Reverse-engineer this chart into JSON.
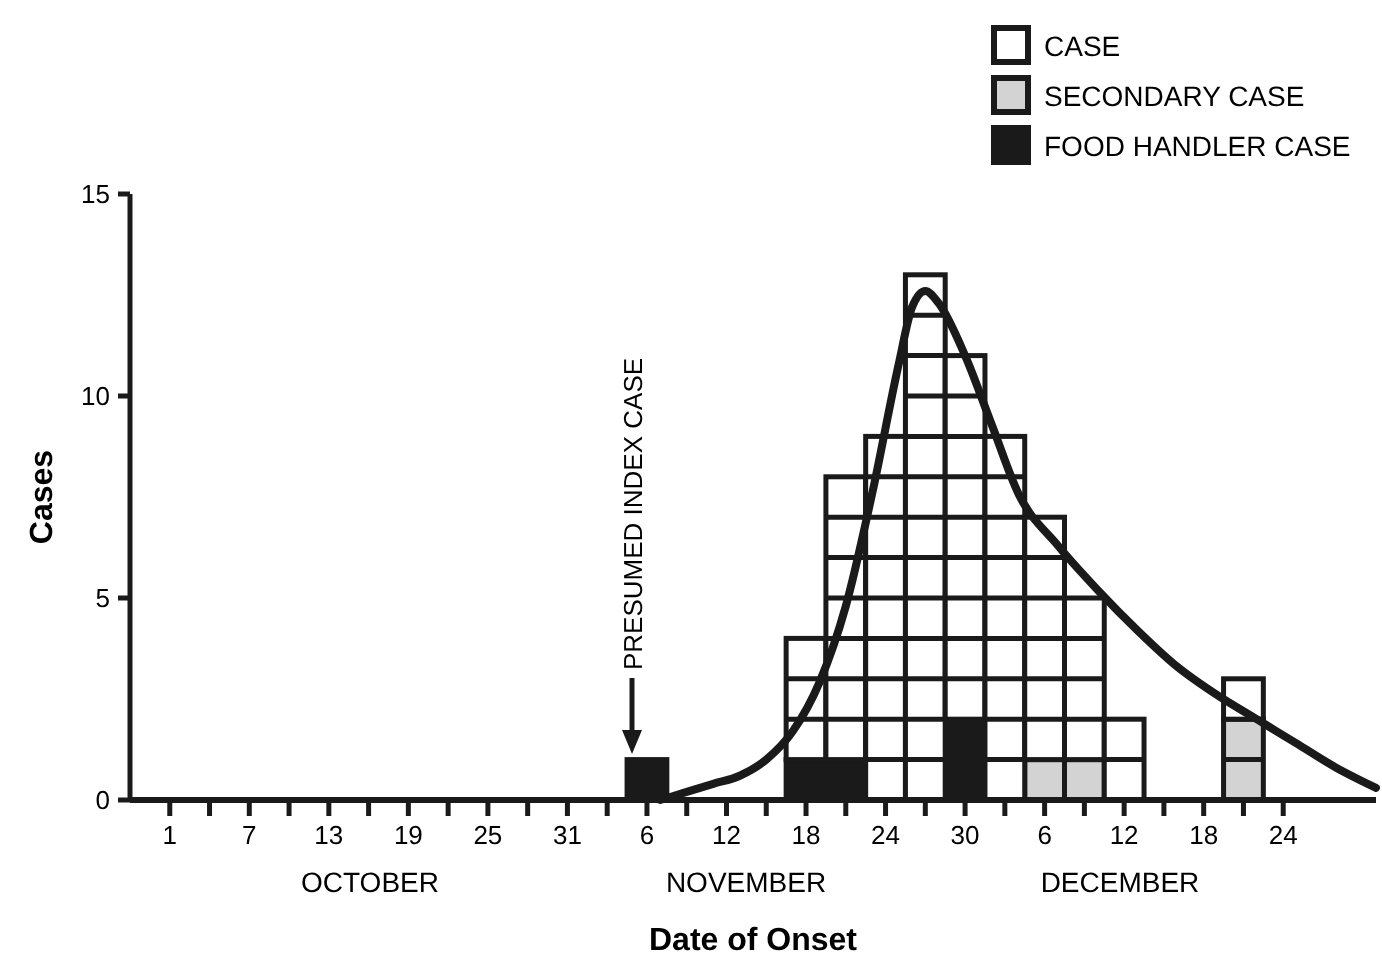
{
  "chart_data": {
    "type": "bar",
    "stacked": true,
    "xlabel": "Date of Onset",
    "ylabel": "Cases",
    "x": [
      "--11-06",
      "--11-18",
      "--11-21",
      "--11-24",
      "--11-27",
      "--11-30",
      "--12-03",
      "--12-06",
      "--12-09",
      "--12-12",
      "--12-21"
    ],
    "series": [
      {
        "name": "FOOD HANDLER CASE",
        "color": "#1a1a1a",
        "values": [
          1,
          1,
          1,
          0,
          0,
          2,
          0,
          0,
          0,
          0,
          0
        ]
      },
      {
        "name": "SECONDARY CASE",
        "color": "#d3d3d3",
        "values": [
          0,
          0,
          0,
          0,
          0,
          0,
          0,
          1,
          1,
          0,
          2
        ]
      },
      {
        "name": "CASE",
        "color": "#ffffff",
        "values": [
          0,
          3,
          7,
          9,
          13,
          9,
          9,
          6,
          4,
          2,
          1
        ]
      },
      {
        "type": "line",
        "color": "#1a1a1a",
        "marker": "none",
        "line_style": "solid",
        "x": [
          "--11-07",
          "--11-09",
          "--11-11",
          "--11-13",
          "--11-15",
          "--11-17",
          "--11-19",
          "--11-21",
          "--11-23",
          "--11-25",
          "--11-26",
          "--11-27",
          "--11-28",
          "--11-30",
          "--12-02",
          "--12-04",
          "--12-07",
          "--12-10",
          "--12-13",
          "--12-16",
          "--12-19",
          "--12-22",
          "--12-25",
          "--12-28",
          "--12-31"
        ],
        "values": [
          0,
          0.2,
          0.4,
          0.6,
          1.0,
          1.7,
          2.9,
          4.8,
          7.6,
          10.8,
          12.2,
          12.6,
          12.3,
          11,
          9.3,
          7.6,
          6.3,
          5.2,
          4.2,
          3.3,
          2.6,
          2.0,
          1.4,
          0.8,
          0.3
        ]
      }
    ],
    "xlim": [
      "--09-28",
      "--12-31"
    ],
    "xticks": [
      {
        "value": "--10-01",
        "label": "1"
      },
      {
        "value": "--10-04",
        "label": null
      },
      {
        "value": "--10-07",
        "label": "7"
      },
      {
        "value": "--10-10",
        "label": null
      },
      {
        "value": "--10-13",
        "label": "13"
      },
      {
        "value": "--10-16",
        "label": null
      },
      {
        "value": "--10-19",
        "label": "19"
      },
      {
        "value": "--10-22",
        "label": null
      },
      {
        "value": "--10-25",
        "label": "25"
      },
      {
        "value": "--10-28",
        "label": null
      },
      {
        "value": "--10-31",
        "label": "31"
      },
      {
        "value": "--11-03",
        "label": null
      },
      {
        "value": "--11-06",
        "label": "6"
      },
      {
        "value": "--11-09",
        "label": null
      },
      {
        "value": "--11-12",
        "label": "12"
      },
      {
        "value": "--11-15",
        "label": null
      },
      {
        "value": "--11-18",
        "label": "18"
      },
      {
        "value": "--11-21",
        "label": null
      },
      {
        "value": "--11-24",
        "label": "24"
      },
      {
        "value": "--11-27",
        "label": null
      },
      {
        "value": "--11-30",
        "label": "30"
      },
      {
        "value": "--12-03",
        "label": null
      },
      {
        "value": "--12-06",
        "label": "6"
      },
      {
        "value": "--12-09",
        "label": null
      },
      {
        "value": "--12-12",
        "label": "12"
      },
      {
        "value": "--12-15",
        "label": null
      },
      {
        "value": "--12-18",
        "label": "18"
      },
      {
        "value": "--12-21",
        "label": null
      },
      {
        "value": "--12-24",
        "label": "24"
      }
    ],
    "ylim": [
      0,
      15
    ],
    "yticks": [
      0,
      5,
      10,
      15
    ],
    "grid": false,
    "legend": "top right",
    "annotations": [
      "PRESUMED INDEX CASE",
      "OCTOBER",
      "NOVEMBER",
      "DECEMBER"
    ]
  }
}
